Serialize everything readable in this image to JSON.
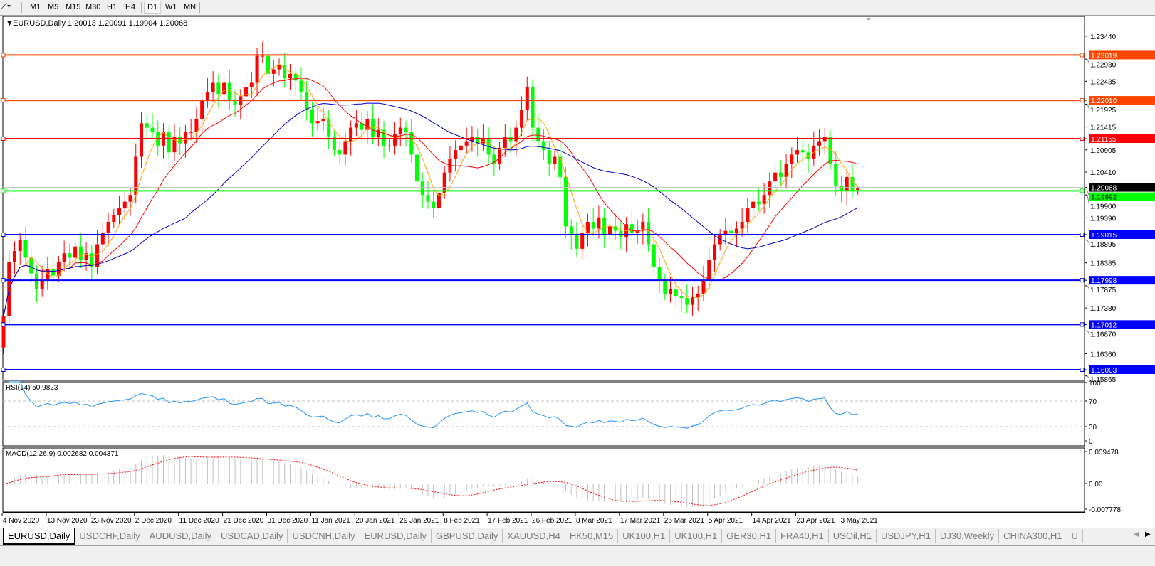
{
  "toolbar": {
    "icon": "line-tool-icon",
    "timeframes": [
      "M1",
      "M5",
      "M15",
      "M30",
      "H1",
      "H4",
      "D1",
      "W1",
      "MN"
    ],
    "active_timeframe": "D1"
  },
  "chart_header": {
    "symbol": "EURUSD,Daily",
    "ohlc": "1.20013 1.20091 1.19904 1.20068"
  },
  "rsi_header": "RSI(14) 50.9823",
  "macd_header": "MACD(12,26,9) 0.002682 0.004371",
  "tabs": [
    "EURUSD,Daily",
    "USDCHF,Daily",
    "AUDUSD,Daily",
    "USDCAD,Daily",
    "USDCNH,Daily",
    "EURUSD,Daily",
    "GBPUSD,Daily",
    "XAUUSD,H4",
    "HK50,M15",
    "UK100,H1",
    "UK100,H1",
    "GER30,H1",
    "FRA40,H1",
    "USOil,H1",
    "USDJPY,H1",
    "DJ30,Weekly",
    "CHINA300,H1",
    "U"
  ],
  "active_tab": 0,
  "colors": {
    "bull": "#ff0000",
    "bear": "#00ff00",
    "ma_fast": "#ffa500",
    "ma_mid": "#ff0000",
    "ma_slow": "#0000c8",
    "rsi": "#1e90ff",
    "macd_hist": "#c0c0c0",
    "macd_signal": "#ff0000"
  },
  "chart_data": {
    "type": "candlestick",
    "symbol": "EURUSD",
    "timeframe": "Daily",
    "last_bar": {
      "open": 1.20013,
      "high": 1.20091,
      "low": 1.19904,
      "close": 1.20068
    },
    "first_open": 1.165,
    "closes": [
      1.172,
      1.184,
      1.1865,
      1.189,
      1.185,
      1.1815,
      1.178,
      1.18,
      1.1825,
      1.181,
      1.184,
      1.186,
      1.185,
      1.1875,
      1.1845,
      1.186,
      1.183,
      1.188,
      1.1905,
      1.193,
      1.1945,
      1.196,
      1.1975,
      1.199,
      1.2075,
      1.215,
      1.214,
      1.213,
      1.21,
      1.213,
      1.2085,
      1.212,
      1.2105,
      1.213,
      1.213,
      1.216,
      1.22,
      1.222,
      1.224,
      1.2215,
      1.224,
      1.22,
      1.219,
      1.221,
      1.223,
      1.224,
      1.23,
      1.23,
      1.226,
      1.227,
      1.228,
      1.225,
      1.226,
      1.2245,
      1.222,
      1.218,
      1.215,
      1.2155,
      1.216,
      1.212,
      1.209,
      1.208,
      1.211,
      1.214,
      1.215,
      1.2135,
      1.216,
      1.212,
      1.2135,
      1.21,
      1.21,
      1.2125,
      1.214,
      1.213,
      1.208,
      1.202,
      1.199,
      1.1975,
      1.196,
      1.1995,
      1.204,
      1.207,
      1.209,
      1.21,
      1.211,
      1.212,
      1.2105,
      1.2115,
      1.208,
      1.206,
      1.2095,
      1.212,
      1.211,
      1.214,
      1.218,
      1.223,
      1.214,
      1.211,
      1.209,
      1.206,
      1.2075,
      1.203,
      1.192,
      1.19,
      1.187,
      1.1905,
      1.193,
      1.1915,
      1.194,
      1.19,
      1.192,
      1.191,
      1.1895,
      1.1925,
      1.1905,
      1.191,
      1.193,
      1.188,
      1.183,
      1.18,
      1.177,
      1.178,
      1.1765,
      1.176,
      1.1745,
      1.1762,
      1.177,
      1.18,
      1.1845,
      1.188,
      1.19,
      1.191,
      1.1905,
      1.1915,
      1.193,
      1.196,
      1.1975,
      1.197,
      1.199,
      1.202,
      1.204,
      1.203,
      1.206,
      1.208,
      1.209,
      1.2085,
      1.207,
      1.21,
      1.211,
      1.212,
      1.206,
      1.201,
      1.2,
      1.203,
      1.2,
      1.20068
    ],
    "price_ticks": [
      "1.23440",
      "1.22930",
      "1.22435",
      "1.21925",
      "1.21415",
      "1.20905",
      "1.20410",
      "1.19900",
      "1.19390",
      "1.18895",
      "1.18385",
      "1.17875",
      "1.17380",
      "1.16870",
      "1.16360",
      "1.15865"
    ],
    "horizontal_levels": [
      {
        "price": "1.23019",
        "color": "#ff4500"
      },
      {
        "price": "1.22010",
        "color": "#ff4500"
      },
      {
        "price": "1.21155",
        "color": "#ff0000"
      },
      {
        "price": "1.19992",
        "color": "#00ff00"
      },
      {
        "price": "1.19015",
        "color": "#0000ff"
      },
      {
        "price": "1.17998",
        "color": "#0000ff"
      },
      {
        "price": "1.17012",
        "color": "#0000ff"
      },
      {
        "price": "1.16003",
        "color": "#0000ff"
      }
    ],
    "current_price_label": "1.20068",
    "moving_averages": [
      5,
      13,
      34
    ],
    "date_labels": [
      "4 Nov 2020",
      "13 Nov 2020",
      "23 Nov 2020",
      "2 Dec 2020",
      "11 Dec 2020",
      "21 Dec 2020",
      "31 Dec 2020",
      "11 Jan 2021",
      "20 Jan 2021",
      "29 Jan 2021",
      "8 Feb 2021",
      "17 Feb 2021",
      "26 Feb 2021",
      "8 Mar 2021",
      "17 Mar 2021",
      "26 Mar 2021",
      "5 Apr 2021",
      "14 Apr 2021",
      "23 Apr 2021",
      "3 May 2021"
    ],
    "rsi": {
      "period": 14,
      "value": "50.9823",
      "ticks": [
        "100",
        "70",
        "30",
        "0"
      ],
      "levels": [
        70,
        30
      ]
    },
    "macd": {
      "fast": 12,
      "slow": 26,
      "signal": 9,
      "main": "0.002682",
      "signal_value": "0.004371",
      "ticks": [
        "0.009478",
        "0.00",
        "-0.007778"
      ]
    }
  }
}
